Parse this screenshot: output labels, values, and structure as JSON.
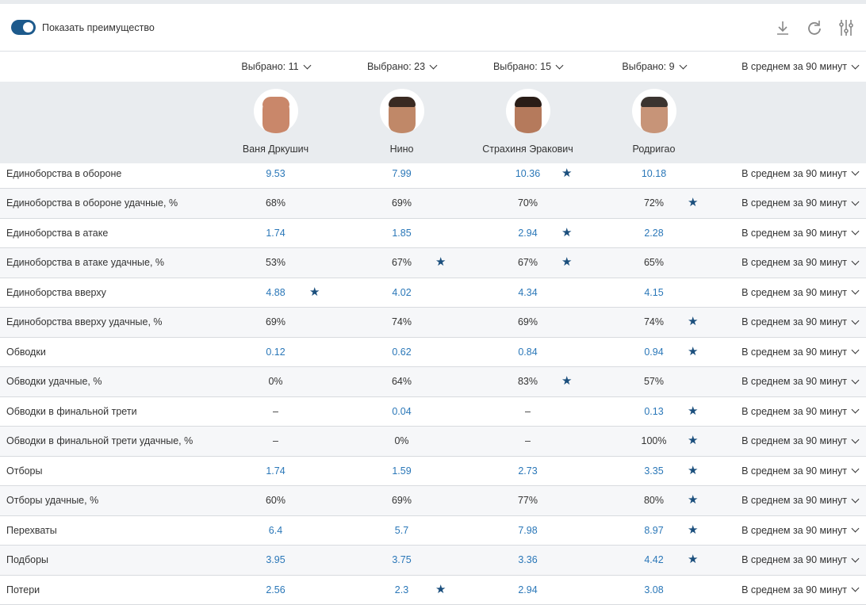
{
  "toolbar": {
    "toggle_label": "Показать преимущество",
    "toggle_on": true,
    "icons": [
      "download-icon",
      "refresh-icon",
      "settings-sliders-icon"
    ]
  },
  "selectors": [
    "Выбрано: 11",
    "Выбрано: 23",
    "Выбрано: 15",
    "Выбрано: 9"
  ],
  "aggregation_header": "В среднем за 90 минут",
  "players": [
    {
      "name": "Ваня Дркушич"
    },
    {
      "name": "Нино"
    },
    {
      "name": "Страхиня Эракович"
    },
    {
      "name": "Родригао"
    }
  ],
  "colors": {
    "accent": "#1d5a8c",
    "value_blue": "#2a77b8",
    "star": "#1b4f7d"
  },
  "rows": [
    {
      "label": "Единоборства в обороне",
      "values": [
        "9.53",
        "7.99",
        "10.36",
        "10.18"
      ],
      "best": [
        2
      ],
      "agg": "В среднем за 90 минут"
    },
    {
      "label": "Единоборства в обороне удачные, %",
      "values": [
        "68%",
        "69%",
        "70%",
        "72%"
      ],
      "best": [
        3
      ],
      "agg": "В среднем за 90 минут"
    },
    {
      "label": "Единоборства в атаке",
      "values": [
        "1.74",
        "1.85",
        "2.94",
        "2.28"
      ],
      "best": [
        2
      ],
      "agg": "В среднем за 90 минут"
    },
    {
      "label": "Единоборства в атаке удачные, %",
      "values": [
        "53%",
        "67%",
        "67%",
        "65%"
      ],
      "best": [
        1,
        2
      ],
      "agg": "В среднем за 90 минут"
    },
    {
      "label": "Единоборства вверху",
      "values": [
        "4.88",
        "4.02",
        "4.34",
        "4.15"
      ],
      "best": [
        0
      ],
      "agg": "В среднем за 90 минут"
    },
    {
      "label": "Единоборства вверху удачные, %",
      "values": [
        "69%",
        "74%",
        "69%",
        "74%"
      ],
      "best": [
        3
      ],
      "agg": "В среднем за 90 минут"
    },
    {
      "label": "Обводки",
      "values": [
        "0.12",
        "0.62",
        "0.84",
        "0.94"
      ],
      "best": [
        3
      ],
      "agg": "В среднем за 90 минут"
    },
    {
      "label": "Обводки удачные, %",
      "values": [
        "0%",
        "64%",
        "83%",
        "57%"
      ],
      "best": [
        2
      ],
      "agg": "В среднем за 90 минут"
    },
    {
      "label": "Обводки в финальной трети",
      "values": [
        "–",
        "0.04",
        "–",
        "0.13"
      ],
      "best": [
        3
      ],
      "agg": "В среднем за 90 минут"
    },
    {
      "label": "Обводки в финальной трети удачные, %",
      "values": [
        "–",
        "0%",
        "–",
        "100%"
      ],
      "best": [
        3
      ],
      "agg": "В среднем за 90 минут"
    },
    {
      "label": "Отборы",
      "values": [
        "1.74",
        "1.59",
        "2.73",
        "3.35"
      ],
      "best": [
        3
      ],
      "agg": "В среднем за 90 минут"
    },
    {
      "label": "Отборы удачные, %",
      "values": [
        "60%",
        "69%",
        "77%",
        "80%"
      ],
      "best": [
        3
      ],
      "agg": "В среднем за 90 минут"
    },
    {
      "label": "Перехваты",
      "values": [
        "6.4",
        "5.7",
        "7.98",
        "8.97"
      ],
      "best": [
        3
      ],
      "agg": "В среднем за 90 минут"
    },
    {
      "label": "Подборы",
      "values": [
        "3.95",
        "3.75",
        "3.36",
        "4.42"
      ],
      "best": [
        3
      ],
      "agg": "В среднем за 90 минут"
    },
    {
      "label": "Потери",
      "values": [
        "2.56",
        "2.3",
        "2.94",
        "3.08"
      ],
      "best": [
        1
      ],
      "agg": "В среднем за 90 минут"
    }
  ]
}
